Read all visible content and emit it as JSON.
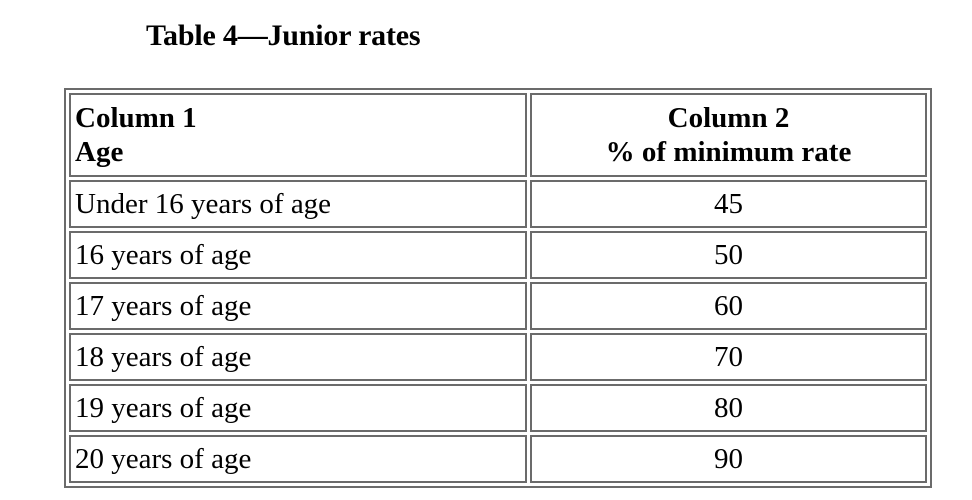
{
  "caption": "Table 4—Junior rates",
  "table": {
    "headers": [
      {
        "line1": "Column 1",
        "line2": "Age"
      },
      {
        "line1": "Column 2",
        "line2": "% of minimum rate"
      }
    ],
    "rows": [
      {
        "age": "Under 16 years of age",
        "percent": "45"
      },
      {
        "age": "16 years of age",
        "percent": "50"
      },
      {
        "age": "17 years of age",
        "percent": "60"
      },
      {
        "age": "18 years of age",
        "percent": "70"
      },
      {
        "age": "19 years of age",
        "percent": "80"
      },
      {
        "age": "20 years of age",
        "percent": "90"
      }
    ]
  }
}
